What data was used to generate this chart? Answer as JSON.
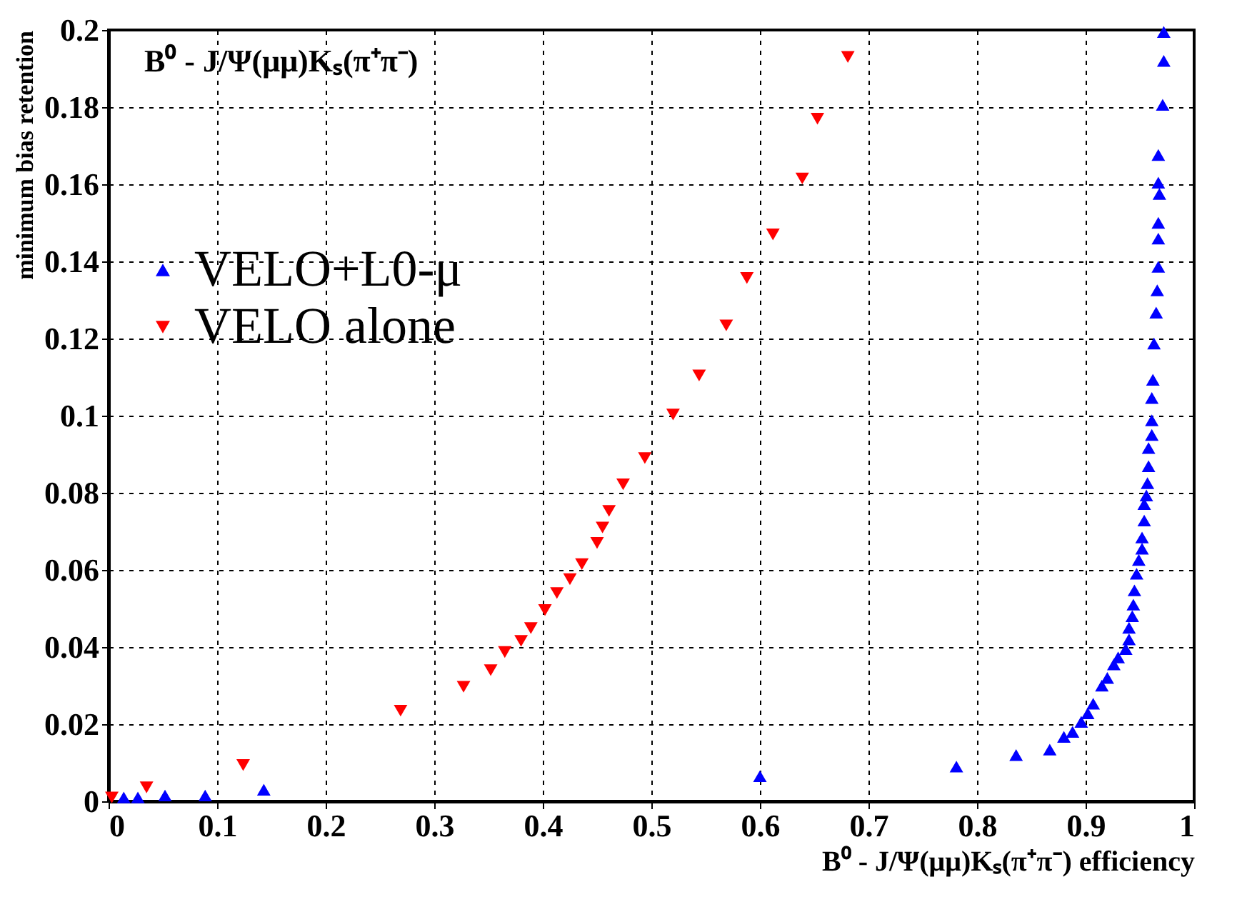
{
  "chart_data": {
    "type": "scatter",
    "title": "B⁰ - J/Ψ(μμ)Kₛ(π⁺π⁻)",
    "xlabel": "B⁰ - J/Ψ(μμ)Kₛ(π⁺π⁻) efficiency",
    "ylabel": "minimum bias retention",
    "xlim": [
      0,
      1
    ],
    "ylim": [
      0,
      0.2
    ],
    "xticks": [
      0,
      0.1,
      0.2,
      0.3,
      0.4,
      0.5,
      0.6,
      0.7,
      0.8,
      0.9,
      1
    ],
    "yticks": [
      0,
      0.02,
      0.04,
      0.06,
      0.08,
      0.1,
      0.12,
      0.14,
      0.16,
      0.18,
      0.2
    ],
    "grid": true,
    "legend": "top left",
    "series": [
      {
        "name": "VELO+L0-μ",
        "color": "#0000ff",
        "marker": "triangle",
        "x": [
          0.014,
          0.027,
          0.052,
          0.089,
          0.143,
          0.6,
          0.781,
          0.836,
          0.867,
          0.88,
          0.888,
          0.896,
          0.902,
          0.907,
          0.915,
          0.92,
          0.926,
          0.93,
          0.937,
          0.94,
          0.94,
          0.943,
          0.944,
          0.945,
          0.947,
          0.949,
          0.952,
          0.952,
          0.954,
          0.954,
          0.956,
          0.957,
          0.958,
          0.958,
          0.961,
          0.961,
          0.961,
          0.962,
          0.963,
          0.965,
          0.966,
          0.967,
          0.967,
          0.967,
          0.968,
          0.967,
          0.967,
          0.971,
          0.972,
          0.972
        ],
        "values": [
          0.001,
          0.001,
          0.0015,
          0.0015,
          0.003,
          0.0065,
          0.009,
          0.012,
          0.0134,
          0.0167,
          0.018,
          0.0206,
          0.0228,
          0.0253,
          0.03,
          0.032,
          0.0355,
          0.0373,
          0.0395,
          0.042,
          0.045,
          0.048,
          0.051,
          0.0547,
          0.059,
          0.0626,
          0.0655,
          0.0684,
          0.0728,
          0.0771,
          0.0793,
          0.0825,
          0.0869,
          0.0916,
          0.095,
          0.0988,
          0.1046,
          0.1093,
          0.1187,
          0.1267,
          0.1325,
          0.1386,
          0.1459,
          0.15,
          0.1575,
          0.1604,
          0.1676,
          0.1806,
          0.192,
          0.1995
        ]
      },
      {
        "name": "VELO alone",
        "color": "#ff0000",
        "marker": "triangle-down",
        "x": [
          0.003,
          0.035,
          0.124,
          0.269,
          0.327,
          0.352,
          0.365,
          0.38,
          0.389,
          0.402,
          0.413,
          0.425,
          0.436,
          0.45,
          0.455,
          0.461,
          0.474,
          0.494,
          0.52,
          0.544,
          0.569,
          0.588,
          0.612,
          0.639,
          0.653,
          0.681
        ],
        "values": [
          0.001,
          0.0036,
          0.0094,
          0.0235,
          0.0297,
          0.034,
          0.0387,
          0.0416,
          0.0449,
          0.0496,
          0.054,
          0.0576,
          0.0615,
          0.067,
          0.071,
          0.0753,
          0.0822,
          0.089,
          0.1003,
          0.1104,
          0.1234,
          0.1357,
          0.147,
          0.1615,
          0.177,
          0.193
        ]
      }
    ]
  }
}
